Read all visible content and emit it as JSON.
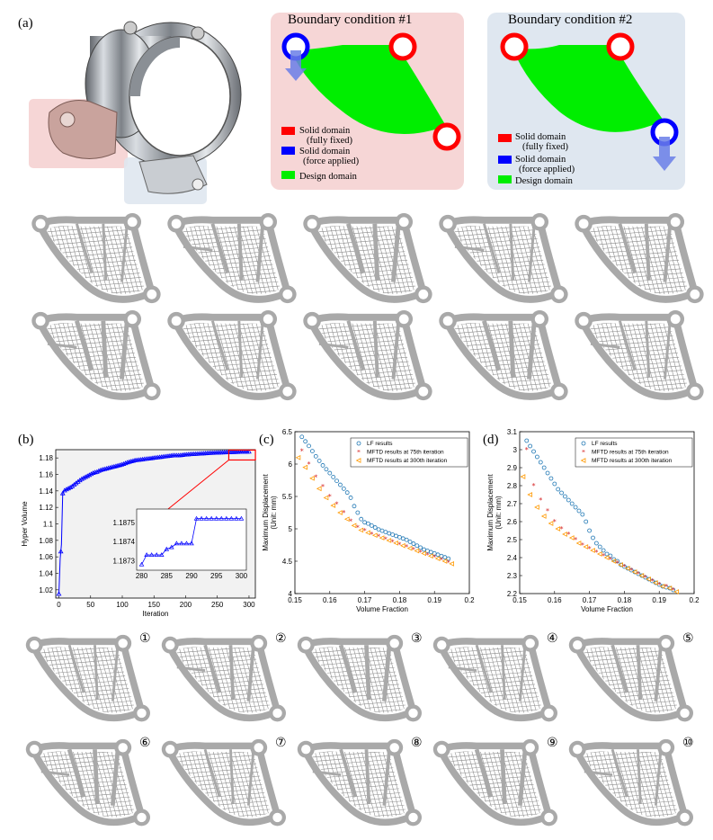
{
  "figure": {
    "panel_a_label": "(a)",
    "panel_b_label": "(b)",
    "panel_c_label": "(c)",
    "panel_d_label": "(d)"
  },
  "boundary_condition_1": {
    "title": "Boundary condition #1",
    "legend": [
      {
        "color": "#ff0000",
        "line1": "Solid domain",
        "line2": "(fully fixed)"
      },
      {
        "color": "#0000ff",
        "line1": "Solid domain",
        "line2": "(force applied)"
      },
      {
        "color": "#00ee00",
        "line1": "Design domain",
        "line2": ""
      }
    ]
  },
  "boundary_condition_2": {
    "title": "Boundary condition #2",
    "legend": [
      {
        "color": "#ff0000",
        "line1": "Solid domain",
        "line2": "(fully fixed)"
      },
      {
        "color": "#0000ff",
        "line1": "Solid domain",
        "line2": "(force applied)"
      },
      {
        "color": "#00ee00",
        "line1": "Design domain",
        "line2": ""
      }
    ]
  },
  "design_markers": [
    "①",
    "②",
    "③",
    "④",
    "⑤",
    "⑥",
    "⑦",
    "⑧",
    "⑨",
    "⑩"
  ],
  "chart_data": [
    {
      "id": "b",
      "type": "line",
      "xlabel": "Iteration",
      "ylabel": "Hyper Volume",
      "xlim": [
        -5,
        310
      ],
      "ylim": [
        1.01,
        1.19
      ],
      "xticks": [
        0,
        50,
        100,
        150,
        200,
        250,
        300
      ],
      "yticks": [
        1.02,
        1.04,
        1.06,
        1.08,
        1.1,
        1.12,
        1.14,
        1.16,
        1.18
      ],
      "ytick_labels": [
        "1.02",
        "1.04",
        "1.06",
        "1.08",
        "1.1",
        "1.12",
        "1.14",
        "1.16",
        "1.18"
      ],
      "series": [
        {
          "color": "#0000ff",
          "x": [
            0,
            2,
            4,
            6,
            8,
            10,
            15,
            20,
            25,
            30,
            35,
            40,
            45,
            50,
            55,
            60,
            65,
            70,
            75,
            80,
            85,
            90,
            95,
            100,
            110,
            120,
            130,
            140,
            150,
            160,
            170,
            180,
            190,
            200,
            210,
            220,
            230,
            240,
            250,
            260,
            270,
            280,
            290,
            300
          ],
          "y": [
            1.015,
            1.058,
            1.075,
            1.137,
            1.14,
            1.141,
            1.143,
            1.145,
            1.148,
            1.151,
            1.154,
            1.156,
            1.158,
            1.16,
            1.162,
            1.163,
            1.165,
            1.166,
            1.167,
            1.168,
            1.169,
            1.17,
            1.171,
            1.172,
            1.175,
            1.177,
            1.178,
            1.179,
            1.18,
            1.181,
            1.182,
            1.183,
            1.183,
            1.184,
            1.1845,
            1.185,
            1.1855,
            1.186,
            1.1863,
            1.1866,
            1.1869,
            1.1871,
            1.1874,
            1.1875
          ]
        }
      ],
      "inset": {
        "xlim": [
          279,
          301
        ],
        "ylim": [
          1.18725,
          1.18757
        ],
        "xticks": [
          280,
          285,
          290,
          295,
          300
        ],
        "yticks": [
          1.1873,
          1.1874,
          1.1875
        ],
        "x": [
          280,
          281,
          282,
          283,
          284,
          285,
          286,
          287,
          288,
          289,
          290,
          291,
          292,
          293,
          294,
          295,
          296,
          297,
          298,
          299,
          300
        ],
        "y": [
          1.18728,
          1.18733,
          1.18733,
          1.18733,
          1.18733,
          1.18736,
          1.18737,
          1.18739,
          1.18739,
          1.18739,
          1.18739,
          1.18752,
          1.18752,
          1.18752,
          1.18752,
          1.18752,
          1.18752,
          1.18752,
          1.18752,
          1.18752,
          1.18752
        ]
      }
    },
    {
      "id": "c",
      "type": "scatter",
      "xlabel": "Volume Fraction",
      "ylabel": "Maximum Displacement",
      "ylabel2": "(Unit: mm)",
      "xlim": [
        0.15,
        0.2
      ],
      "ylim": [
        4.0,
        6.5
      ],
      "xticks": [
        0.15,
        0.16,
        0.17,
        0.18,
        0.19,
        0.2
      ],
      "yticks": [
        4,
        4.5,
        5,
        5.5,
        6,
        6.5
      ],
      "legend": [
        "LF results",
        "MFTD results at 75th iteration",
        "MFTD results at 300th iteration"
      ],
      "series": [
        {
          "name": "LF results",
          "color": "#1f77b4",
          "marker": "o",
          "x": [
            0.152,
            0.153,
            0.154,
            0.155,
            0.156,
            0.157,
            0.158,
            0.159,
            0.16,
            0.161,
            0.162,
            0.163,
            0.164,
            0.165,
            0.166,
            0.167,
            0.168,
            0.169,
            0.17,
            0.171,
            0.172,
            0.173,
            0.174,
            0.175,
            0.176,
            0.177,
            0.178,
            0.179,
            0.18,
            0.181,
            0.182,
            0.183,
            0.184,
            0.185,
            0.186,
            0.187,
            0.188,
            0.189,
            0.19,
            0.191,
            0.192,
            0.193,
            0.194
          ],
          "y": [
            6.42,
            6.35,
            6.28,
            6.2,
            6.12,
            6.05,
            5.98,
            5.92,
            5.86,
            5.8,
            5.74,
            5.68,
            5.62,
            5.56,
            5.48,
            5.35,
            5.25,
            5.15,
            5.1,
            5.08,
            5.05,
            5.02,
            4.99,
            4.97,
            4.95,
            4.93,
            4.91,
            4.89,
            4.87,
            4.85,
            4.83,
            4.8,
            4.77,
            4.74,
            4.71,
            4.68,
            4.66,
            4.64,
            4.62,
            4.6,
            4.58,
            4.56,
            4.54
          ]
        },
        {
          "name": "MFTD results at 75th iteration",
          "color": "#d62728",
          "marker": "*",
          "x": [
            0.152,
            0.154,
            0.156,
            0.158,
            0.16,
            0.162,
            0.164,
            0.166,
            0.168,
            0.17,
            0.172,
            0.174,
            0.176,
            0.178,
            0.18,
            0.182,
            0.184,
            0.186,
            0.188,
            0.19,
            0.192,
            0.194
          ],
          "y": [
            6.2,
            6.0,
            5.8,
            5.65,
            5.5,
            5.38,
            5.25,
            5.12,
            5.02,
            4.97,
            4.92,
            4.88,
            4.84,
            4.8,
            4.76,
            4.72,
            4.68,
            4.64,
            4.6,
            4.56,
            4.52,
            4.48
          ]
        },
        {
          "name": "MFTD results at 300th iteration",
          "color": "#ff9900",
          "marker": "<",
          "x": [
            0.151,
            0.153,
            0.155,
            0.157,
            0.159,
            0.161,
            0.163,
            0.165,
            0.167,
            0.169,
            0.171,
            0.173,
            0.175,
            0.177,
            0.179,
            0.181,
            0.183,
            0.185,
            0.187,
            0.189,
            0.191,
            0.193,
            0.195
          ],
          "y": [
            6.1,
            5.95,
            5.78,
            5.62,
            5.48,
            5.36,
            5.25,
            5.15,
            5.05,
            4.98,
            4.94,
            4.9,
            4.86,
            4.82,
            4.78,
            4.74,
            4.7,
            4.66,
            4.62,
            4.58,
            4.54,
            4.5,
            4.46
          ]
        }
      ]
    },
    {
      "id": "d",
      "type": "scatter",
      "xlabel": "Volume Fraction",
      "ylabel": "Maximum Displacement",
      "ylabel2": "(Unit: mm)",
      "xlim": [
        0.15,
        0.2
      ],
      "ylim": [
        2.2,
        3.1
      ],
      "xticks": [
        0.15,
        0.16,
        0.17,
        0.18,
        0.19,
        0.2
      ],
      "yticks": [
        2.2,
        2.3,
        2.4,
        2.5,
        2.6,
        2.7,
        2.8,
        2.9,
        3,
        3.1
      ],
      "legend": [
        "LF results",
        "MFTD results at 75th iteration",
        "MFTD results at 300th iteration"
      ],
      "series": [
        {
          "name": "LF results",
          "color": "#1f77b4",
          "marker": "o",
          "x": [
            0.152,
            0.153,
            0.154,
            0.155,
            0.156,
            0.157,
            0.158,
            0.159,
            0.16,
            0.161,
            0.162,
            0.163,
            0.164,
            0.165,
            0.166,
            0.167,
            0.168,
            0.169,
            0.17,
            0.171,
            0.172,
            0.173,
            0.174,
            0.175,
            0.176,
            0.177,
            0.178,
            0.179,
            0.18,
            0.181,
            0.182,
            0.183,
            0.184,
            0.185,
            0.186,
            0.187,
            0.188,
            0.189,
            0.19,
            0.191,
            0.192,
            0.193,
            0.194
          ],
          "y": [
            3.05,
            3.02,
            2.99,
            2.96,
            2.93,
            2.9,
            2.87,
            2.84,
            2.81,
            2.78,
            2.76,
            2.74,
            2.72,
            2.7,
            2.68,
            2.66,
            2.64,
            2.6,
            2.55,
            2.51,
            2.48,
            2.46,
            2.44,
            2.42,
            2.41,
            2.39,
            2.38,
            2.36,
            2.35,
            2.34,
            2.33,
            2.32,
            2.31,
            2.3,
            2.29,
            2.28,
            2.27,
            2.26,
            2.25,
            2.24,
            2.235,
            2.23,
            2.22
          ]
        },
        {
          "name": "MFTD results at 75th iteration",
          "color": "#d62728",
          "marker": "*",
          "x": [
            0.152,
            0.154,
            0.156,
            0.158,
            0.16,
            0.162,
            0.164,
            0.166,
            0.168,
            0.17,
            0.172,
            0.174,
            0.176,
            0.178,
            0.18,
            0.182,
            0.184,
            0.186,
            0.188,
            0.19,
            0.192,
            0.194
          ],
          "y": [
            3.0,
            2.8,
            2.72,
            2.66,
            2.6,
            2.56,
            2.53,
            2.5,
            2.47,
            2.45,
            2.43,
            2.41,
            2.39,
            2.37,
            2.35,
            2.33,
            2.31,
            2.29,
            2.27,
            2.25,
            2.24,
            2.22
          ]
        },
        {
          "name": "MFTD results at 300th iteration",
          "color": "#ff9900",
          "marker": "<",
          "x": [
            0.151,
            0.153,
            0.155,
            0.157,
            0.159,
            0.161,
            0.163,
            0.165,
            0.167,
            0.169,
            0.171,
            0.173,
            0.175,
            0.177,
            0.179,
            0.181,
            0.183,
            0.185,
            0.187,
            0.189,
            0.191,
            0.193,
            0.195
          ],
          "y": [
            2.85,
            2.75,
            2.68,
            2.63,
            2.59,
            2.56,
            2.53,
            2.51,
            2.48,
            2.46,
            2.44,
            2.42,
            2.4,
            2.38,
            2.36,
            2.34,
            2.32,
            2.3,
            2.28,
            2.26,
            2.24,
            2.23,
            2.21
          ]
        }
      ]
    }
  ]
}
